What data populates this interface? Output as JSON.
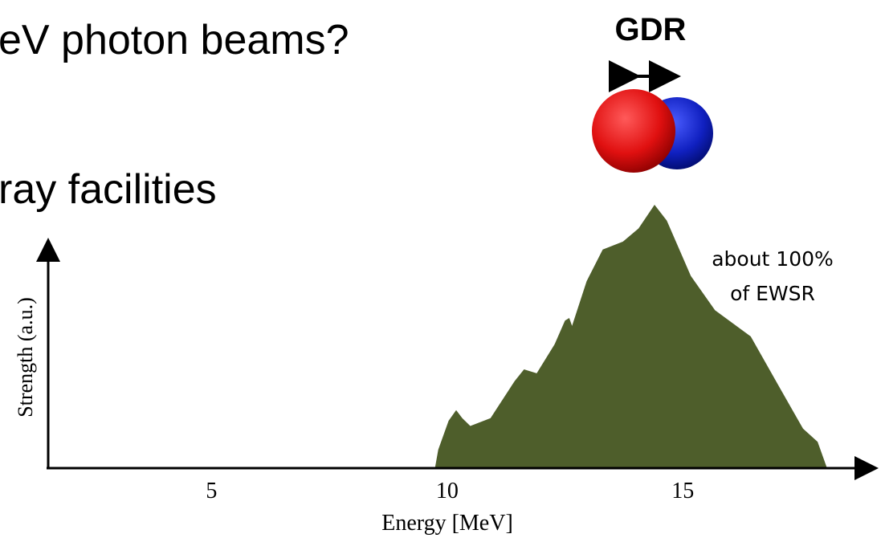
{
  "slide_text": [
    "eV photon beams?",
    "ray facilities"
  ],
  "figure_label": "GDR",
  "chart_data": {
    "type": "area",
    "xlabel": "Energy [MeV]",
    "ylabel": "Strength (a.u.)",
    "annotations": [
      "about 100%",
      "of EWSR"
    ],
    "xlim": [
      1.5,
      19
    ],
    "xticks": [
      5,
      10,
      15
    ],
    "ylim": [
      0,
      1
    ],
    "color": "#4e5e2b",
    "x": [
      9.74,
      9.81,
      10.03,
      10.19,
      10.32,
      10.49,
      10.92,
      11.43,
      11.63,
      11.9,
      12.28,
      12.5,
      12.59,
      12.65,
      12.96,
      13.3,
      13.73,
      14.06,
      14.4,
      14.66,
      15.17,
      15.68,
      16.44,
      17.04,
      17.55,
      17.86,
      18.06
    ],
    "values": [
      0,
      0.07,
      0.18,
      0.22,
      0.19,
      0.16,
      0.19,
      0.33,
      0.375,
      0.36,
      0.47,
      0.56,
      0.57,
      0.54,
      0.71,
      0.83,
      0.86,
      0.91,
      1.0,
      0.94,
      0.73,
      0.6,
      0.5,
      0.31,
      0.15,
      0.1,
      0
    ]
  }
}
